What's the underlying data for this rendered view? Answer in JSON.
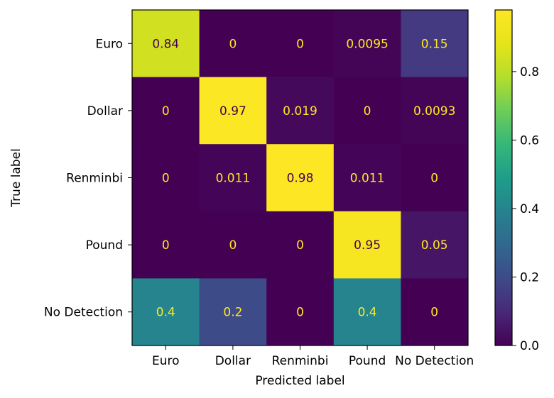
{
  "chart_data": {
    "type": "heatmap",
    "title": "",
    "xlabel": "Predicted label",
    "ylabel": "True label",
    "x_categories": [
      "Euro",
      "Dollar",
      "Renminbi",
      "Pound",
      "No Detection"
    ],
    "y_categories": [
      "Euro",
      "Dollar",
      "Renminbi",
      "Pound",
      "No Detection"
    ],
    "values": [
      [
        0.84,
        0,
        0,
        0.0095,
        0.15
      ],
      [
        0,
        0.97,
        0.019,
        0,
        0.0093
      ],
      [
        0,
        0.011,
        0.98,
        0.011,
        0
      ],
      [
        0,
        0,
        0,
        0.95,
        0.05
      ],
      [
        0.4,
        0.2,
        0,
        0.4,
        0
      ]
    ],
    "cell_labels": [
      [
        "0.84",
        "0",
        "0",
        "0.0095",
        "0.15"
      ],
      [
        "0",
        "0.97",
        "0.019",
        "0",
        "0.0093"
      ],
      [
        "0",
        "0.011",
        "0.98",
        "0.011",
        "0"
      ],
      [
        "0",
        "0",
        "0",
        "0.95",
        "0.05"
      ],
      [
        "0.4",
        "0.2",
        "0",
        "0.4",
        "0"
      ]
    ],
    "colormap": "viridis",
    "colorbar": {
      "vmin": 0,
      "vmax": 0.98,
      "ticks": [
        0.0,
        0.2,
        0.4,
        0.6,
        0.8
      ],
      "tick_labels": [
        "0.0",
        "0.2",
        "0.4",
        "0.6",
        "0.8"
      ]
    },
    "text_color_dark": "#440154",
    "text_color_light": "#fde725"
  }
}
